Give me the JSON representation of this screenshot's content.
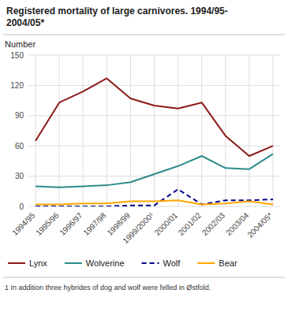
{
  "chart_data": {
    "type": "line",
    "title": "Registered mortality of large carnivores. 1994/95-\n2004/05*",
    "y_label": "Number",
    "footnote": "1 In addition three hybrides of dog and wolf were felled in Østfold.",
    "categories": [
      "1994/95",
      "1995/96",
      "1996/97",
      "1997/98",
      "1998/99",
      "1999/2000¹",
      "2000/01",
      "2001/02",
      "2002/03",
      "2003/04",
      "2004/05*"
    ],
    "series": [
      {
        "name": "Lynx",
        "color": "#8B1A1A",
        "line_style": "solid",
        "values": [
          65,
          103,
          114,
          127,
          107,
          100,
          97,
          103,
          70,
          50,
          60
        ]
      },
      {
        "name": "Wolverine",
        "color": "#2E8B8B",
        "line_style": "solid",
        "values": [
          20,
          19,
          20,
          21,
          24,
          32,
          40,
          50,
          38,
          37,
          52
        ]
      },
      {
        "name": "Wolf",
        "color": "#00008B",
        "line_style": "dashed",
        "values": [
          0,
          0,
          0,
          0,
          1,
          1,
          17,
          2,
          6,
          6,
          7
        ]
      },
      {
        "name": "Bear",
        "color": "#FFA500",
        "line_style": "solid",
        "values": [
          2,
          2,
          3,
          3,
          5,
          5,
          6,
          2,
          3,
          5,
          2
        ]
      }
    ],
    "ylim": [
      0,
      150
    ],
    "yticks": [
      0,
      30,
      60,
      90,
      120,
      150
    ],
    "grid": true,
    "legend": "bottom"
  }
}
